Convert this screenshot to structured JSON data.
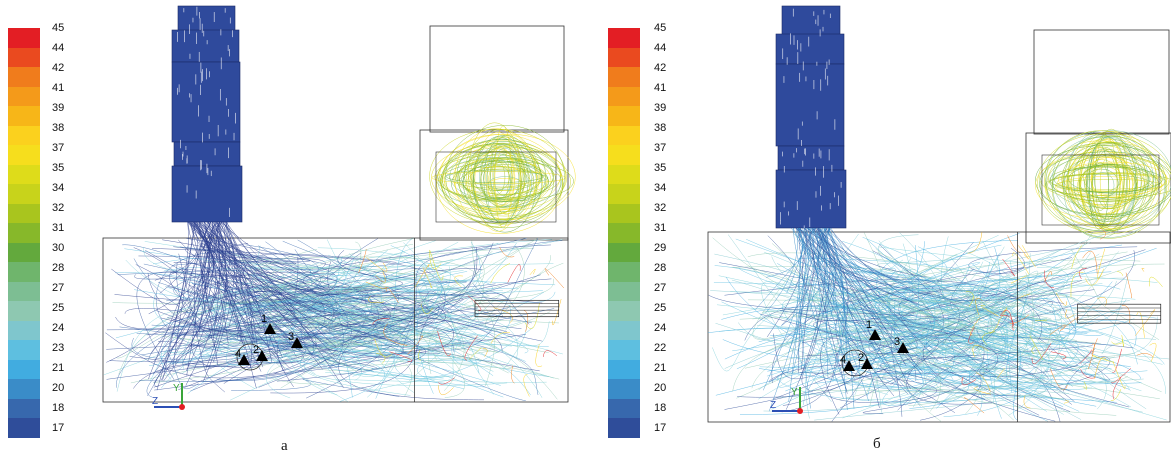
{
  "colorbar": {
    "colors": [
      "#e31e24",
      "#ea4a1f",
      "#f07c1c",
      "#f49a1a",
      "#f7b618",
      "#fbd11e",
      "#f6de1d",
      "#dedc1a",
      "#c8d31b",
      "#a9c51e",
      "#87b82a",
      "#63a93d",
      "#6fb56c",
      "#7dbe93",
      "#8ec8b1",
      "#7fc6cd",
      "#5ebfe0",
      "#41ace0",
      "#3a8cc8",
      "#3768ad",
      "#2f4d9a"
    ],
    "labels_a": [
      "45",
      "44",
      "42",
      "41",
      "39",
      "38",
      "37",
      "35",
      "34",
      "32",
      "31",
      "30",
      "28",
      "27",
      "25",
      "24",
      "23",
      "21",
      "20",
      "18",
      "17"
    ],
    "labels_b": [
      "45",
      "44",
      "42",
      "41",
      "39",
      "38",
      "37",
      "35",
      "34",
      "32",
      "31",
      "29",
      "28",
      "27",
      "25",
      "24",
      "22",
      "21",
      "20",
      "18",
      "17"
    ]
  },
  "panels": [
    {
      "id": "a",
      "caption": "а",
      "points": [
        "1",
        "2",
        "3",
        "4"
      ],
      "axes": {
        "z": "Z",
        "y": "Y"
      }
    },
    {
      "id": "b",
      "caption": "б",
      "points": [
        "1",
        "2",
        "3",
        "4"
      ],
      "axes": {
        "z": "Z",
        "y": "Y"
      }
    }
  ]
}
